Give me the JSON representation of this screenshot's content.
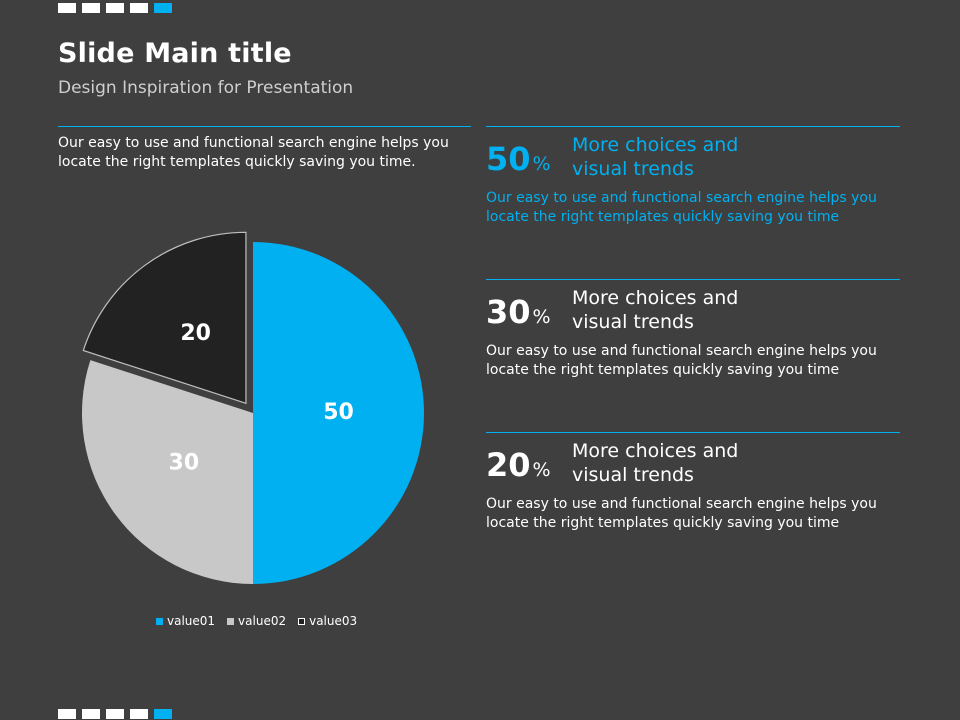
{
  "header": {
    "title": "Slide Main title",
    "subtitle": "Design Inspiration for Presentation"
  },
  "intro_text": "Our easy to use and functional search engine helps you locate the right templates quickly saving you time.",
  "colors": {
    "accent": "#00b0f0",
    "background": "#3f3f3f",
    "slice2": "#c8c8c8",
    "slice3": "#222222"
  },
  "chart_data": {
    "type": "pie",
    "categories": [
      "value01",
      "value02",
      "value03"
    ],
    "values": [
      50,
      30,
      20
    ],
    "data_labels": [
      "50",
      "30",
      "20"
    ],
    "colors": [
      "#00b0f0",
      "#c8c8c8",
      "#222222"
    ],
    "exploded": [
      false,
      false,
      true
    ],
    "legend_position": "bottom"
  },
  "stats": [
    {
      "value": "50",
      "unit": "%",
      "heading_line1": "More choices and",
      "heading_line2": "visual trends",
      "text": "Our easy to use and functional search engine helps you locate the right templates quickly saving you time",
      "highlight": true
    },
    {
      "value": "30",
      "unit": "%",
      "heading_line1": "More choices and",
      "heading_line2": "visual trends",
      "text": "Our easy to use and functional search engine helps you locate the right templates quickly saving you time",
      "highlight": false
    },
    {
      "value": "20",
      "unit": "%",
      "heading_line1": "More choices and",
      "heading_line2": "visual trends",
      "text": "Our easy to use and functional search engine helps you locate the right templates quickly saving you time",
      "highlight": false
    }
  ]
}
